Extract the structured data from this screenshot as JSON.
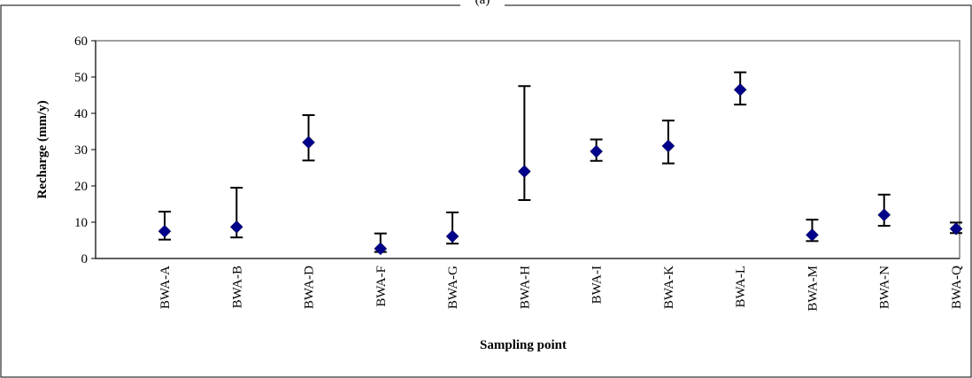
{
  "chart_data": {
    "type": "scatter",
    "title": "(a)",
    "xlabel": "Sampling point",
    "ylabel": "Recharge (mm/y)",
    "ylim": [
      0,
      60
    ],
    "yticks": [
      0,
      10,
      20,
      30,
      40,
      50,
      60
    ],
    "grid": false,
    "legend": "none",
    "categories": [
      "BWA-A",
      "BWA-B",
      "BWA-D",
      "BWA-F",
      "BWA-G",
      "BWA-H",
      "BWA-I",
      "BWA-K",
      "BWA-L",
      "BWA-M",
      "BWA-N",
      "BWA-Q"
    ],
    "series": [
      {
        "values": [
          7.5,
          8.7,
          32,
          2.7,
          6.1,
          24,
          29.5,
          31,
          46.5,
          6.5,
          12,
          8.2
        ],
        "error_low": [
          5.2,
          5.8,
          27,
          1.8,
          4.1,
          16.1,
          26.9,
          26.2,
          42.4,
          4.8,
          9.0,
          7.0
        ],
        "error_high": [
          12.9,
          19.5,
          39.5,
          6.9,
          12.7,
          47.5,
          32.8,
          38,
          51.3,
          10.7,
          17.6,
          9.9
        ]
      }
    ],
    "marker_color": "#00008B",
    "error_bar_color": "#000000"
  }
}
